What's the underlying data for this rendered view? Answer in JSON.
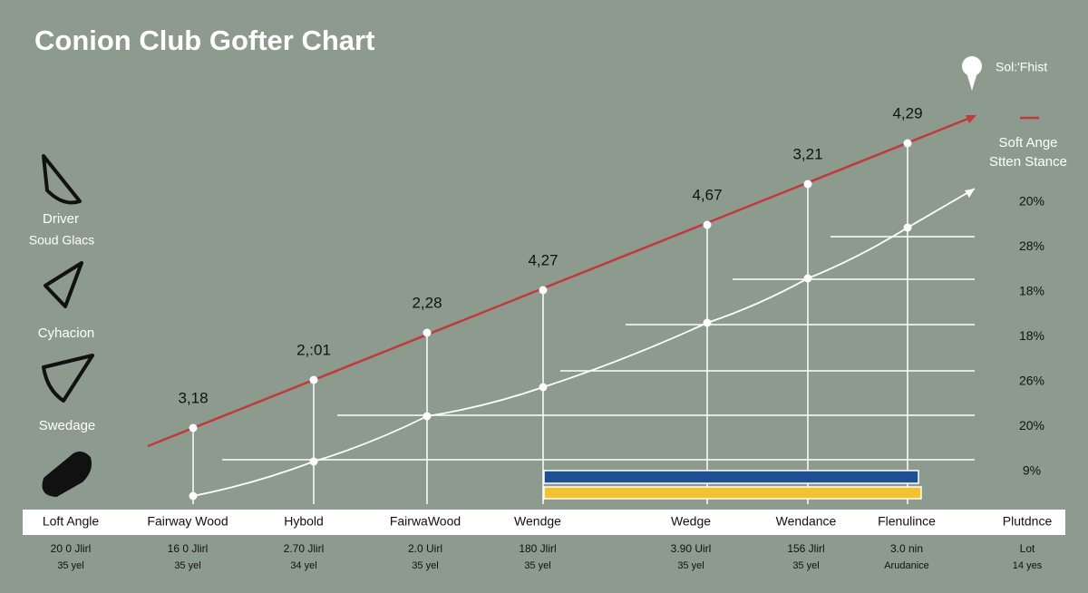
{
  "title": "Conion Club Gofter Chart",
  "legend": {
    "ball": "Sol:'Fhist",
    "line": [
      "Soft Ange",
      "Stten Stance"
    ]
  },
  "left_labels": [
    "Driver",
    "Soud Glacs",
    "Cyhacion",
    "Swedage"
  ],
  "right_labels": [
    "20%",
    "28%",
    "18%",
    "18%",
    "26%",
    "20%",
    "9%"
  ],
  "red_line": {
    "color": "#c0393b",
    "labels": [
      "3,18",
      "2,:01",
      "2,28",
      "4,27",
      "4,67",
      "3,21",
      "4,29"
    ]
  },
  "white_line": {
    "color": "#ffffff"
  },
  "bars": [
    {
      "color": "#1d4f91"
    },
    {
      "color": "#f2c230"
    }
  ],
  "columns": [
    {
      "name": "Loft Angle",
      "line1": "20 0 Jlirl",
      "line2": "35 yel"
    },
    {
      "name": "Fairway Wood",
      "line1": "16 0 Jlirl",
      "line2": "35 yel"
    },
    {
      "name": "Hybold",
      "line1": "2.70 Jlirl",
      "line2": "34 yel"
    },
    {
      "name": "FairwaWood",
      "line1": "2.0 Uirl",
      "line2": "35 yel"
    },
    {
      "name": "Wendge",
      "line1": "180 Jlirl",
      "line2": "35 yel"
    },
    {
      "name": "Wedge",
      "line1": "3.90 Uirl",
      "line2": "35 yel"
    },
    {
      "name": "Wendance",
      "line1": "156 Jlirl",
      "line2": "35 yel"
    },
    {
      "name": "Flenulince",
      "line1": "3.0 nin",
      "line2": "Arudanice"
    },
    {
      "name": "Plutdnce",
      "line1": "Lot",
      "line2": "14 yes"
    }
  ]
}
